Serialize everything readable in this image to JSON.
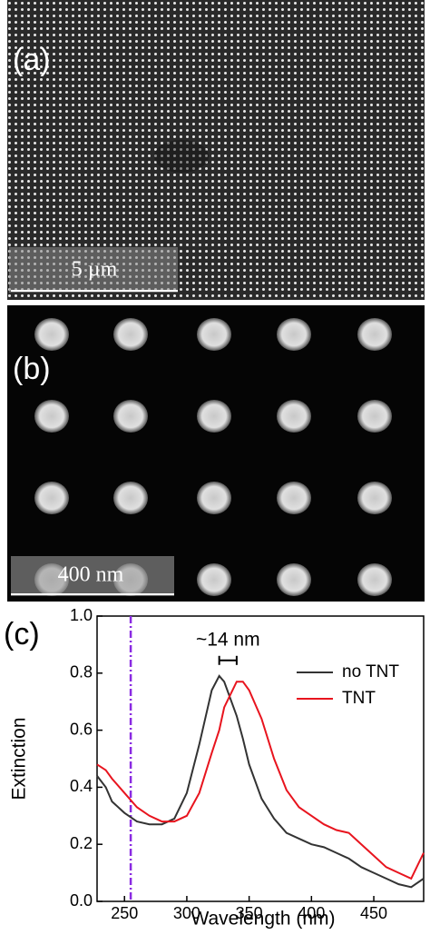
{
  "panels": {
    "a": {
      "label": "(a)",
      "scale_bar": "5 µm"
    },
    "b": {
      "label": "(b)",
      "scale_bar": "400 nm"
    }
  },
  "chart_data": {
    "type": "line",
    "panel_label": "(c)",
    "x_label": "Wavelength (nm)",
    "y_label": "Extinction",
    "x": [
      228,
      235,
      240,
      250,
      260,
      270,
      280,
      290,
      300,
      310,
      320,
      326,
      330,
      340,
      345,
      350,
      360,
      370,
      380,
      390,
      400,
      410,
      420,
      430,
      440,
      450,
      460,
      470,
      480,
      490
    ],
    "series": [
      {
        "name": "no TNT",
        "color": "#333333",
        "values": [
          0.44,
          0.4,
          0.35,
          0.31,
          0.28,
          0.27,
          0.27,
          0.29,
          0.38,
          0.55,
          0.74,
          0.79,
          0.77,
          0.65,
          0.57,
          0.48,
          0.36,
          0.29,
          0.24,
          0.22,
          0.2,
          0.19,
          0.17,
          0.15,
          0.12,
          0.1,
          0.08,
          0.06,
          0.05,
          0.08
        ]
      },
      {
        "name": "TNT",
        "color": "#e8141e",
        "values": [
          0.48,
          0.46,
          0.43,
          0.38,
          0.33,
          0.3,
          0.28,
          0.28,
          0.3,
          0.38,
          0.52,
          0.6,
          0.68,
          0.77,
          0.77,
          0.74,
          0.64,
          0.5,
          0.39,
          0.33,
          0.3,
          0.27,
          0.25,
          0.24,
          0.2,
          0.16,
          0.12,
          0.1,
          0.08,
          0.17
        ]
      }
    ],
    "xlim": [
      228,
      490
    ],
    "ylim": [
      0,
      1
    ],
    "xticks": [
      250,
      300,
      350,
      400,
      450
    ],
    "yticks": [
      {
        "value": 0,
        "label": "0.0"
      },
      0.2,
      0.4,
      0.6,
      0.8,
      {
        "value": 1,
        "label": "1.0"
      }
    ],
    "vline": {
      "x": 255,
      "color": "#8a2be2"
    },
    "annotation": {
      "text": "~14 nm",
      "x_start": 326,
      "x_end": 340,
      "y": 0.8
    },
    "legend": "upper right"
  }
}
